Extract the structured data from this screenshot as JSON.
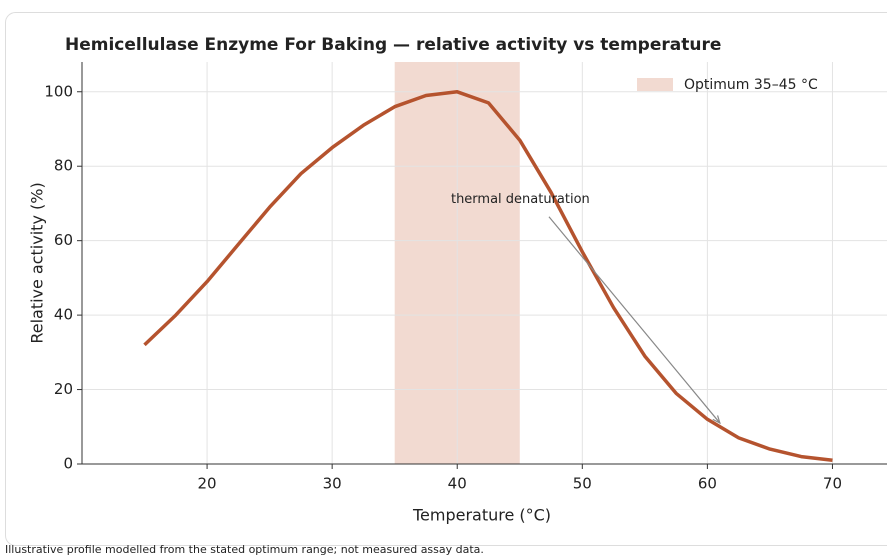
{
  "chart_data": {
    "type": "line",
    "title": "Hemicellulase Enzyme For Baking — relative activity vs temperature",
    "x_label": "Temperature (°C)",
    "y_label": "Relative activity (%)",
    "x": [
      15,
      17.5,
      20,
      22.5,
      25,
      27.5,
      30,
      32.5,
      35,
      37.5,
      40,
      42.5,
      45,
      47.5,
      50,
      52.5,
      55,
      57.5,
      60,
      62.5,
      65,
      67.5,
      70
    ],
    "series": [
      {
        "name": "Relative activity",
        "color": "#b5532e",
        "values": [
          32,
          40,
          49,
          59,
          69,
          78,
          85,
          91,
          96,
          99,
          100,
          97,
          87,
          73,
          57,
          42,
          29,
          19,
          12,
          7,
          4,
          2,
          1
        ]
      }
    ],
    "band": {
      "name": "Optimum 35–45 °C",
      "range": [
        35,
        45
      ],
      "color": "#f2dad1"
    },
    "annotation": {
      "text": "thermal denaturation",
      "xy": [
        61,
        11
      ],
      "xytext": [
        39.5,
        71
      ]
    },
    "xlim": [
      10,
      75
    ],
    "ylim": [
      0,
      108
    ],
    "xticks": [
      20,
      30,
      40,
      50,
      60,
      70
    ],
    "yticks": [
      0,
      20,
      40,
      60,
      80,
      100
    ],
    "grid": true,
    "legend": "upper right",
    "footnote": "Illustrative profile modelled from the stated optimum range; not measured assay data."
  }
}
